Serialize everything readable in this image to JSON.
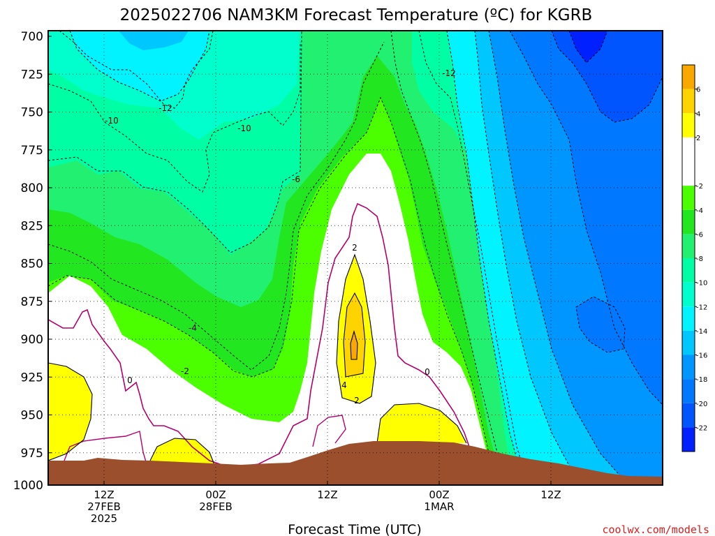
{
  "chart_data": {
    "type": "heatmap",
    "title": "2025022706 NAM3KM Forecast Temperature (ºC) for KGRB",
    "xlabel": "Forecast Time (UTC)",
    "credit": "coolwx.com/models",
    "y_axis": {
      "quantity": "pressure (hPa)",
      "range": [
        1000,
        700
      ],
      "inverted": true,
      "ticks": [
        "700",
        "725",
        "750",
        "775",
        "800",
        "825",
        "850",
        "875",
        "900",
        "925",
        "950",
        "975",
        "1000"
      ]
    },
    "x_axis": {
      "range": [
        "2025-02-27T06Z",
        "2025-03-02T00Z"
      ],
      "ticks": [
        {
          "lines": [
            "12Z",
            "27FEB",
            "2025"
          ],
          "time": "2025-02-27T12Z"
        },
        {
          "lines": [
            "00Z",
            "28FEB"
          ],
          "time": "2025-02-28T00Z"
        },
        {
          "lines": [
            "12Z"
          ],
          "time": "2025-02-28T12Z"
        },
        {
          "lines": [
            "00Z",
            "1MAR"
          ],
          "time": "2025-03-01T00Z"
        },
        {
          "lines": [
            "12Z"
          ],
          "time": "2025-03-01T12Z"
        }
      ]
    },
    "grid": true,
    "colorbar": {
      "placement": "right",
      "tick_labels": [
        "6",
        "4",
        "2",
        "-2",
        "-4",
        "-6",
        "-8",
        "-10",
        "-12",
        "-14",
        "-16",
        "-18",
        "-20",
        "-22"
      ],
      "bands": [
        {
          "range": [
            6,
            8
          ],
          "color": "#f9a800"
        },
        {
          "range": [
            4,
            6
          ],
          "color": "#ffd300"
        },
        {
          "range": [
            2,
            4
          ],
          "color": "#ffff00"
        },
        {
          "range": [
            -2,
            2
          ],
          "color": "#ffffff"
        },
        {
          "range": [
            -4,
            -2
          ],
          "color": "#4bff00"
        },
        {
          "range": [
            -6,
            -4
          ],
          "color": "#22e620"
        },
        {
          "range": [
            -8,
            -6
          ],
          "color": "#22f070"
        },
        {
          "range": [
            -10,
            -8
          ],
          "color": "#00ffa4"
        },
        {
          "range": [
            -12,
            -10
          ],
          "color": "#00ffcd"
        },
        {
          "range": [
            -14,
            -12
          ],
          "color": "#00f3ff"
        },
        {
          "range": [
            -16,
            -14
          ],
          "color": "#00c8ff"
        },
        {
          "range": [
            -18,
            -16
          ],
          "color": "#0096ff"
        },
        {
          "range": [
            -20,
            -18
          ],
          "color": "#0078ff"
        },
        {
          "range": [
            -22,
            -20
          ],
          "color": "#0055ff"
        },
        {
          "range": [
            -24,
            -22
          ],
          "color": "#0020ff"
        }
      ]
    },
    "contour_labels": [
      "-10",
      "-12",
      "-10",
      "-6",
      "-12",
      "-4",
      "-2",
      "0",
      "2",
      "4",
      "2",
      "0"
    ],
    "terrain_color": "#9c4f2c",
    "zero_isotherm_color": "#b4006e"
  }
}
